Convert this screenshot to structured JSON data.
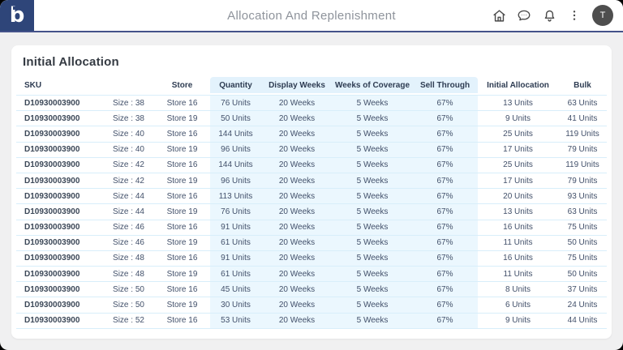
{
  "header": {
    "logo_letter": "b",
    "title": "Allocation And Replenishment",
    "icons": [
      {
        "name": "home-icon"
      },
      {
        "name": "chat-icon"
      },
      {
        "name": "bell-icon"
      },
      {
        "name": "kebab-menu-icon"
      }
    ],
    "avatar_letter": "T"
  },
  "card": {
    "title": "Initial Allocation"
  },
  "table": {
    "columns": [
      {
        "key": "sku",
        "label": "SKU",
        "blue": false
      },
      {
        "key": "size",
        "label": "",
        "blue": false
      },
      {
        "key": "store",
        "label": "Store",
        "blue": false
      },
      {
        "key": "quantity",
        "label": "Quantity",
        "blue": true
      },
      {
        "key": "display_weeks",
        "label": "Display Weeks",
        "blue": true
      },
      {
        "key": "coverage",
        "label": "Weeks of Coverage",
        "blue": true
      },
      {
        "key": "sell_through",
        "label": "Sell Through",
        "blue": true
      },
      {
        "key": "initial_allocation",
        "label": "Initial Allocation",
        "blue": false
      },
      {
        "key": "bulk",
        "label": "Bulk",
        "blue": false
      }
    ],
    "rows": [
      {
        "sku": "D10930003900",
        "size": "Size : 38",
        "store": "Store 16",
        "quantity": "76 Units",
        "display_weeks": "20 Weeks",
        "coverage": "5 Weeks",
        "sell_through": "67%",
        "initial_allocation": "13 Units",
        "bulk": "63 Units"
      },
      {
        "sku": "D10930003900",
        "size": "Size : 38",
        "store": "Store 19",
        "quantity": "50 Units",
        "display_weeks": "20 Weeks",
        "coverage": "5 Weeks",
        "sell_through": "67%",
        "initial_allocation": "9 Units",
        "bulk": "41 Units"
      },
      {
        "sku": "D10930003900",
        "size": "Size : 40",
        "store": "Store 16",
        "quantity": "144 Units",
        "display_weeks": "20 Weeks",
        "coverage": "5 Weeks",
        "sell_through": "67%",
        "initial_allocation": "25 Units",
        "bulk": "119 Units"
      },
      {
        "sku": "D10930003900",
        "size": "Size : 40",
        "store": "Store 19",
        "quantity": "96 Units",
        "display_weeks": "20 Weeks",
        "coverage": "5 Weeks",
        "sell_through": "67%",
        "initial_allocation": "17 Units",
        "bulk": "79 Units"
      },
      {
        "sku": "D10930003900",
        "size": "Size : 42",
        "store": "Store 16",
        "quantity": "144 Units",
        "display_weeks": "20 Weeks",
        "coverage": "5 Weeks",
        "sell_through": "67%",
        "initial_allocation": "25 Units",
        "bulk": "119 Units"
      },
      {
        "sku": "D10930003900",
        "size": "Size : 42",
        "store": "Store 19",
        "quantity": "96 Units",
        "display_weeks": "20 Weeks",
        "coverage": "5 Weeks",
        "sell_through": "67%",
        "initial_allocation": "17 Units",
        "bulk": "79 Units"
      },
      {
        "sku": "D10930003900",
        "size": "Size : 44",
        "store": "Store 16",
        "quantity": "113 Units",
        "display_weeks": "20 Weeks",
        "coverage": "5 Weeks",
        "sell_through": "67%",
        "initial_allocation": "20 Units",
        "bulk": "93 Units"
      },
      {
        "sku": "D10930003900",
        "size": "Size : 44",
        "store": "Store 19",
        "quantity": "76 Units",
        "display_weeks": "20 Weeks",
        "coverage": "5 Weeks",
        "sell_through": "67%",
        "initial_allocation": "13 Units",
        "bulk": "63 Units"
      },
      {
        "sku": "D10930003900",
        "size": "Size : 46",
        "store": "Store 16",
        "quantity": "91 Units",
        "display_weeks": "20 Weeks",
        "coverage": "5 Weeks",
        "sell_through": "67%",
        "initial_allocation": "16 Units",
        "bulk": "75 Units"
      },
      {
        "sku": "D10930003900",
        "size": "Size : 46",
        "store": "Store 19",
        "quantity": "61 Units",
        "display_weeks": "20 Weeks",
        "coverage": "5 Weeks",
        "sell_through": "67%",
        "initial_allocation": "11 Units",
        "bulk": "50 Units"
      },
      {
        "sku": "D10930003900",
        "size": "Size : 48",
        "store": "Store 16",
        "quantity": "91 Units",
        "display_weeks": "20 Weeks",
        "coverage": "5 Weeks",
        "sell_through": "67%",
        "initial_allocation": "16 Units",
        "bulk": "75 Units"
      },
      {
        "sku": "D10930003900",
        "size": "Size : 48",
        "store": "Store 19",
        "quantity": "61 Units",
        "display_weeks": "20 Weeks",
        "coverage": "5 Weeks",
        "sell_through": "67%",
        "initial_allocation": "11 Units",
        "bulk": "50 Units"
      },
      {
        "sku": "D10930003900",
        "size": "Size : 50",
        "store": "Store 16",
        "quantity": "45 Units",
        "display_weeks": "20 Weeks",
        "coverage": "5 Weeks",
        "sell_through": "67%",
        "initial_allocation": "8 Units",
        "bulk": "37 Units"
      },
      {
        "sku": "D10930003900",
        "size": "Size : 50",
        "store": "Store 19",
        "quantity": "30 Units",
        "display_weeks": "20 Weeks",
        "coverage": "5 Weeks",
        "sell_through": "67%",
        "initial_allocation": "6 Units",
        "bulk": "24 Units"
      },
      {
        "sku": "D10930003900",
        "size": "Size : 52",
        "store": "Store 16",
        "quantity": "53 Units",
        "display_weeks": "20 Weeks",
        "coverage": "5 Weeks",
        "sell_through": "67%",
        "initial_allocation": "9 Units",
        "bulk": "44 Units"
      }
    ]
  },
  "colors": {
    "navy": "#2e4579",
    "header_border": "#44528a",
    "blue_header_bg": "#e3f2fc",
    "blue_cell_bg": "#ebf7fe",
    "row_border": "#d8eefa",
    "page_bg": "#f0f0f1",
    "title_text": "#343a42",
    "avatar_bg": "#4e4e4e"
  }
}
